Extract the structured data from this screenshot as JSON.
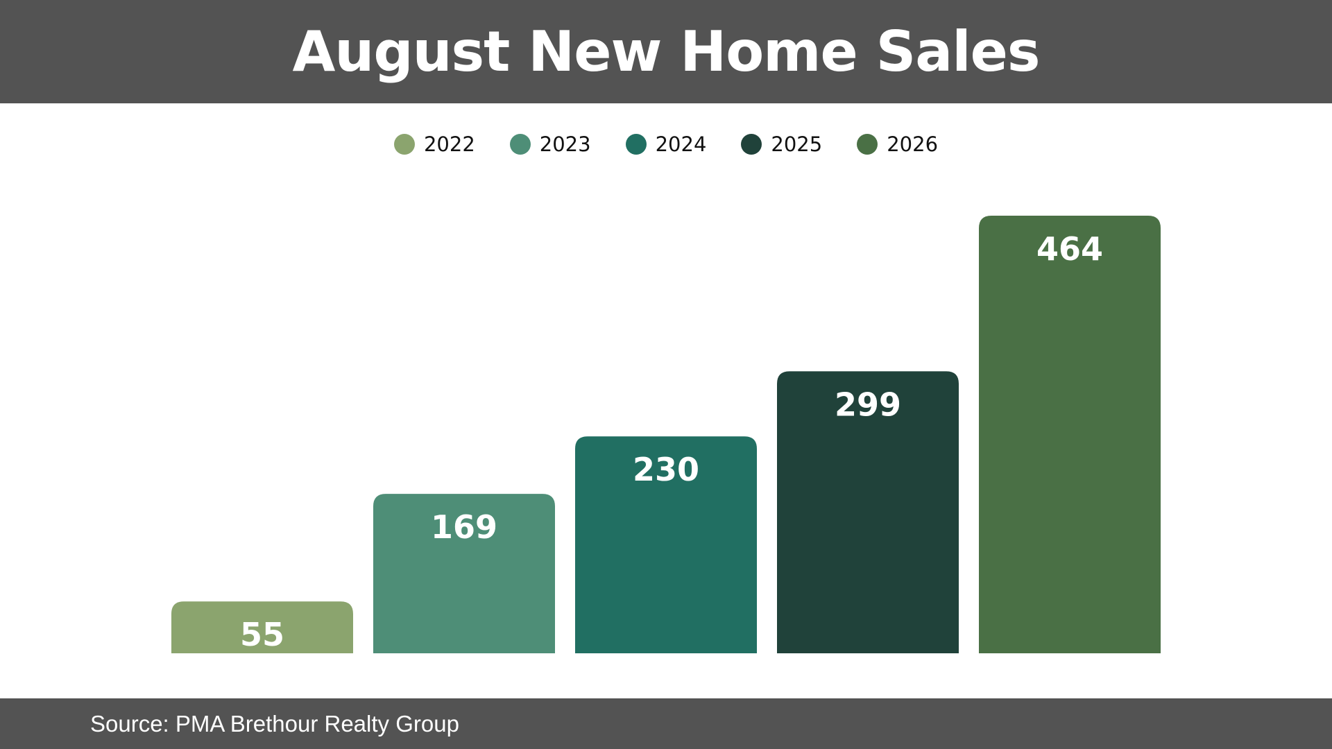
{
  "header": {
    "title": "August New Home Sales"
  },
  "footer": {
    "source": "Source: PMA Brethour Realty Group"
  },
  "colors": {
    "header_bg": "#535353",
    "series": [
      "#8BA46E",
      "#4E8E77",
      "#216F62",
      "#20423A",
      "#4A7045"
    ]
  },
  "chart_data": {
    "type": "bar",
    "categories": [
      "2022",
      "2023",
      "2024",
      "2025",
      "2026"
    ],
    "values": [
      55,
      169,
      230,
      299,
      464
    ],
    "title": "August New Home Sales",
    "xlabel": "",
    "ylabel": "",
    "ylim": [
      0,
      464
    ],
    "grid": false,
    "legend": "top-center",
    "data_labels": [
      "55",
      "169",
      "230",
      "299",
      "464"
    ]
  }
}
